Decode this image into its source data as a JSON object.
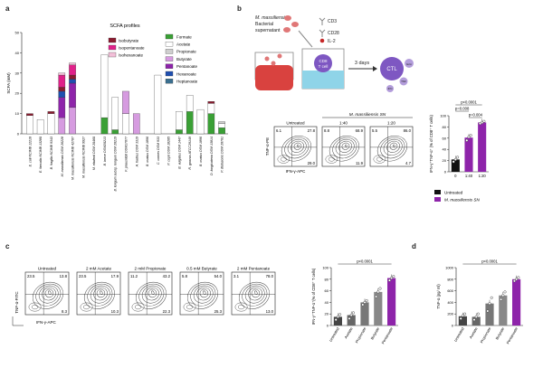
{
  "panels": {
    "a": "a",
    "b": "b",
    "c": "c",
    "d": "d"
  },
  "chart_data": [
    {
      "type": "bar",
      "title": "SCFA profiles",
      "ylabel": "SCFA (mM)",
      "ylim": [
        0,
        50
      ],
      "yticks": [
        0,
        10,
        20,
        30,
        40,
        50
      ],
      "categories": [
        "E. coli NCIMB 12210",
        "E. faecalis NCIMB 13280",
        "B. fragilis NCIMB 9343",
        "M. massiliensis DSM 26228",
        "M. massiliensis NCIMB 42787",
        "M. massiliensis NCIMB 9927",
        "M. elsdenii DSM 20460",
        "B. breve DSM20213",
        "B. longum subsp. longum DSM 20219",
        "F. prausnitzii DSM17677",
        "A. hadrus DSM 3319",
        "B. ovatus DSM 1896",
        "C. comes DSM 933",
        "P. copri DSM 18205",
        "B. vulgatus DSM 1447",
        "R. gnavus ATCC29149",
        "B. ovatus DSM 1896",
        "D. longicatena DSM 13814",
        "P. distasonis DSM 20701"
      ],
      "series": [
        {
          "name": "Formate",
          "color": "#3aa035",
          "values": [
            0,
            0,
            0,
            0,
            0,
            0,
            0,
            8,
            2,
            0,
            0,
            0,
            0,
            0,
            2,
            11,
            0,
            10,
            3
          ]
        },
        {
          "name": "Acetate",
          "color": "#ffffff",
          "values": [
            9,
            7,
            10,
            0,
            0,
            0,
            0,
            31,
            16,
            10,
            0,
            0,
            29,
            0,
            9,
            8,
            12,
            5,
            2
          ]
        },
        {
          "name": "Propionate",
          "color": "#cfcfcf",
          "values": [
            0,
            0,
            0,
            0,
            0,
            0,
            0,
            0,
            0,
            0,
            0,
            0,
            0,
            0,
            0,
            0,
            0,
            0,
            1
          ]
        },
        {
          "name": "Butyrate",
          "color": "#d69be0",
          "values": [
            0,
            0,
            0,
            8,
            13,
            0,
            0,
            0,
            0,
            11,
            10,
            0,
            0,
            0,
            0,
            0,
            0,
            0,
            0
          ]
        },
        {
          "name": "Pentanoate",
          "color": "#8e24aa",
          "values": [
            0,
            0,
            0,
            10,
            12,
            0,
            0,
            0,
            0,
            0,
            0,
            0,
            0,
            0,
            0,
            0,
            0,
            0,
            0
          ]
        },
        {
          "name": "Hexanoate",
          "color": "#1f4fb0",
          "values": [
            0,
            0,
            0,
            3,
            2,
            0,
            0,
            0,
            0,
            0,
            0,
            0,
            0,
            0,
            0,
            0,
            0,
            0,
            0
          ]
        },
        {
          "name": "Heptanoate",
          "color": "#3a6f8f",
          "values": [
            0,
            0,
            0,
            0,
            0,
            0,
            0,
            0,
            0,
            0,
            0,
            0,
            0,
            0,
            0,
            0,
            0,
            0,
            0
          ]
        },
        {
          "name": "Isobutyrate",
          "color": "#8b1b2f",
          "values": [
            1,
            0,
            1,
            2,
            2,
            0,
            0,
            0,
            0,
            0,
            0,
            0,
            0,
            0,
            0,
            0,
            0,
            1,
            0
          ]
        },
        {
          "name": "Isopentanoate",
          "color": "#e0218a",
          "values": [
            0,
            0,
            0,
            6,
            5,
            0,
            0,
            0,
            0,
            0,
            0,
            0,
            0,
            0,
            0,
            0,
            0,
            0,
            0
          ]
        },
        {
          "name": "Isohexanoate",
          "color": "#f2bfd8",
          "values": [
            0,
            0,
            0,
            1,
            1,
            0,
            0,
            0,
            0,
            0,
            0,
            0,
            0,
            0,
            0,
            0,
            0,
            0,
            0
          ]
        }
      ],
      "legend_left": [
        "Isobutyrate",
        "Isopentanoate",
        "Isohexanoate"
      ],
      "legend_right": [
        "Formate",
        "Acetate",
        "Propionate",
        "Butyrate",
        "Pentanoate",
        "Hexanoate",
        "Heptanoate"
      ]
    },
    {
      "type": "bar",
      "ylabel": "IFN-γ⁺TNF-α⁺ (% of CD8⁺ T cells)",
      "ylim": [
        0,
        100
      ],
      "yticks": [
        0,
        20,
        40,
        60,
        80,
        100
      ],
      "categories": [
        "0",
        "1:40",
        "1:20"
      ],
      "values": [
        22,
        61,
        88
      ],
      "colors": [
        "#111111",
        "#8e24aa",
        "#8e24aa"
      ],
      "points": [
        [
          18,
          22,
          26
        ],
        [
          56,
          62,
          65
        ],
        [
          86,
          88,
          90
        ]
      ],
      "significance": [
        {
          "from": 0,
          "to": 2,
          "label": "p<0.0001"
        },
        {
          "from": 0,
          "to": 1,
          "label": "p=0.008"
        },
        {
          "from": 1,
          "to": 2,
          "label": "p=0.004"
        }
      ],
      "legend": [
        {
          "label": "Untreated",
          "color": "#111111"
        },
        {
          "label": "M. massiliensis SN",
          "color": "#8e24aa"
        }
      ]
    },
    {
      "type": "bar",
      "ylabel": "IFN-γ⁺TNF-α⁺(% of CD8⁺ T cells)",
      "ylim": [
        0,
        100
      ],
      "yticks": [
        0,
        20,
        40,
        60,
        80,
        100
      ],
      "categories": [
        "Untreated",
        "Acetate",
        "Propionate",
        "Butyrate",
        "Pentanoate"
      ],
      "values": [
        15,
        18,
        40,
        58,
        82
      ],
      "colors": [
        "#444444",
        "#666666",
        "#777777",
        "#888888",
        "#8e24aa"
      ],
      "points": [
        [
          10,
          15,
          19
        ],
        [
          12,
          18,
          22
        ],
        [
          36,
          40,
          43
        ],
        [
          50,
          58,
          64
        ],
        [
          78,
          82,
          85
        ]
      ],
      "significance": [
        {
          "from": 0,
          "to": 4,
          "label": "p<0.0001"
        }
      ]
    },
    {
      "type": "bar",
      "ylabel": "TNF-α (pg/ ml)",
      "ylim": [
        0,
        1000
      ],
      "yticks": [
        0,
        200,
        400,
        600,
        800,
        1000
      ],
      "categories": [
        "Untreated",
        "Acetate",
        "Propionate",
        "Butyrate",
        "Pentanoate"
      ],
      "values": [
        160,
        150,
        380,
        520,
        800
      ],
      "colors": [
        "#444444",
        "#666666",
        "#777777",
        "#888888",
        "#8e24aa"
      ],
      "points": [
        [
          120,
          170,
          200
        ],
        [
          100,
          150,
          200
        ],
        [
          250,
          380,
          480
        ],
        [
          450,
          520,
          580
        ],
        [
          770,
          800,
          830
        ]
      ],
      "significance": [
        {
          "from": 0,
          "to": 4,
          "label": "p<0.0001"
        }
      ]
    }
  ],
  "schematic": {
    "organism": "M. massiliensis",
    "line2": "Bacterial",
    "line3": "supernatant",
    "ab1": "CD3",
    "ab2": "CD28",
    "cytokine": "IL-2",
    "cell_label_1": "CD8",
    "cell_label_2": "T cell",
    "arrow_label": "3 days",
    "ctl": "CTL",
    "gz": "Gzm",
    "tnf": "TNF",
    "ifn": "IFN"
  },
  "flow_b": {
    "x_label": "IFN-γ-APC",
    "y_label": "TNF-α-PE",
    "group_label": "M. massiliensis SN",
    "plots": [
      {
        "title": "Untreated",
        "tl": "6.1",
        "tr": "27.8",
        "br": "29.0"
      },
      {
        "title": "1:40",
        "tl": "8.8",
        "tr": "68.9",
        "br": "11.9"
      },
      {
        "title": "1:20",
        "tl": "5.5",
        "tr": "86.0",
        "br": "4.7"
      }
    ]
  },
  "flow_c": {
    "x_label": "IFN-γ-APC",
    "y_label": "TNF-α-FITC",
    "plots": [
      {
        "title": "Untreated",
        "tl": "23.5",
        "tr": "13.8",
        "br": "8.3"
      },
      {
        "title": "2 mM Acetate",
        "tl": "23.5",
        "tr": "17.9",
        "br": "10.3"
      },
      {
        "title": "2 mM Propionate",
        "tl": "11.2",
        "tr": "43.2",
        "br": "22.3"
      },
      {
        "title": "0.5 mM Butyrate",
        "tl": "5.8",
        "tr": "54.0",
        "br": "25.3"
      },
      {
        "title": "2 mM Pentanoate",
        "tl": "3.1",
        "tr": "78.0",
        "br": "13.0"
      }
    ]
  }
}
